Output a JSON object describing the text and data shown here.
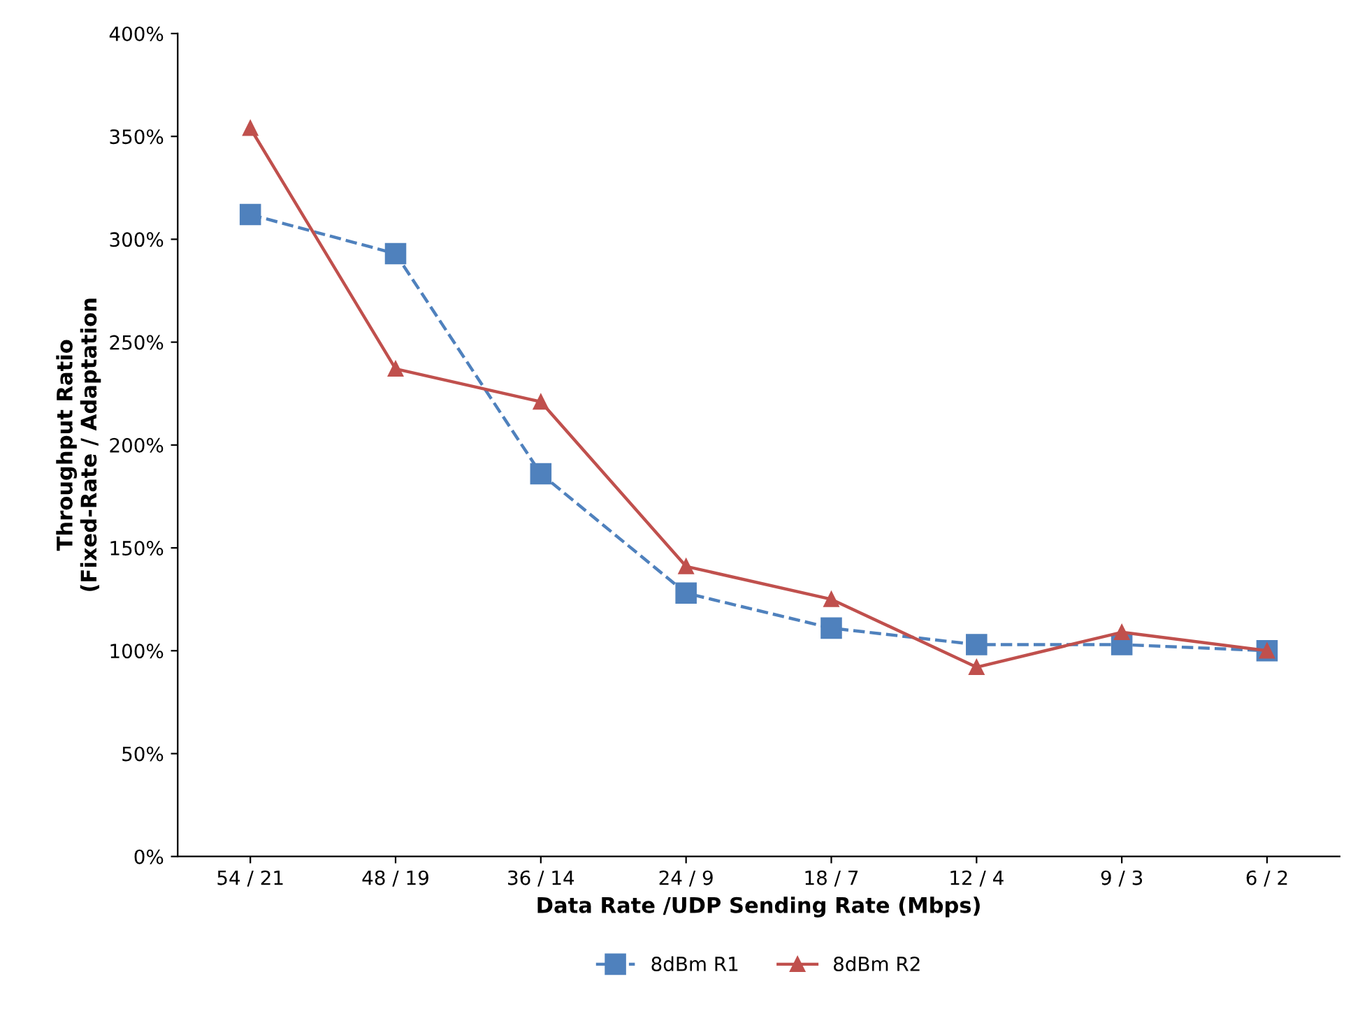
{
  "chart_data": {
    "type": "line",
    "xlabel": "Data Rate /UDP Sending Rate (Mbps)",
    "ylabel": "Throughput Ratio\n(Fixed-Rate / Adaptation",
    "categories": [
      "54 / 21",
      "48 / 19",
      "36 / 14",
      "24 / 9",
      "18 / 7",
      "12 / 4",
      "9 / 3",
      "6 / 2"
    ],
    "series": [
      {
        "name": "8dBm R1",
        "color": "#4f81bd",
        "marker": "square",
        "line_style": "dashed",
        "values": [
          312,
          293,
          186,
          128,
          111,
          103,
          103,
          100
        ]
      },
      {
        "name": "8dBm R2",
        "color": "#c0504d",
        "marker": "triangle",
        "line_style": "solid",
        "values": [
          354,
          237,
          221,
          141,
          125,
          92,
          109,
          100
        ]
      }
    ],
    "ylim": [
      0,
      400
    ],
    "yticks": [
      {
        "value": 0,
        "label": "0%"
      },
      {
        "value": 50,
        "label": "50%"
      },
      {
        "value": 100,
        "label": "100%"
      },
      {
        "value": 150,
        "label": "150%"
      },
      {
        "value": 200,
        "label": "200%"
      },
      {
        "value": 250,
        "label": "250%"
      },
      {
        "value": 300,
        "label": "300%"
      },
      {
        "value": 350,
        "label": "350%"
      },
      {
        "value": 400,
        "label": "400%"
      }
    ],
    "grid": false,
    "legend": "bottom"
  }
}
